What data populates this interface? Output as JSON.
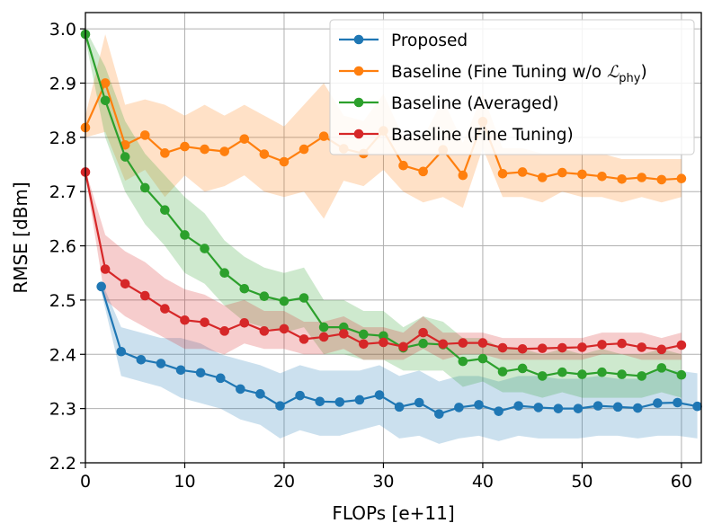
{
  "chart_data": {
    "type": "line",
    "title": "",
    "xlabel": "FLOPs [e+11]",
    "ylabel": "RMSE [dBm]",
    "xlim": [
      0,
      62
    ],
    "ylim": [
      2.2,
      3.03
    ],
    "xticks": [
      0,
      10,
      20,
      30,
      40,
      50,
      60
    ],
    "yticks": [
      2.2,
      2.3,
      2.4,
      2.5,
      2.6,
      2.7,
      2.8,
      2.9,
      3.0
    ],
    "xtick_labels": [
      "0",
      "10",
      "20",
      "30",
      "40",
      "50",
      "60"
    ],
    "ytick_labels": [
      "2.2",
      "2.3",
      "2.4",
      "2.5",
      "2.6",
      "2.7",
      "2.8",
      "2.9",
      "3.0"
    ],
    "grid": true,
    "legend_position": "top-right",
    "series": [
      {
        "name": "Proposed",
        "legend_label": "Proposed",
        "color": "#1f77b4",
        "x": [
          1.6,
          3.6,
          5.6,
          7.6,
          9.6,
          11.6,
          13.6,
          15.6,
          17.6,
          19.6,
          21.6,
          23.6,
          25.6,
          27.6,
          29.6,
          31.6,
          33.6,
          35.6,
          37.6,
          39.6,
          41.6,
          43.6,
          45.6,
          47.6,
          49.6,
          51.6,
          53.6,
          55.6,
          57.6,
          59.6,
          61.6
        ],
        "values": [
          2.525,
          2.405,
          2.39,
          2.383,
          2.371,
          2.366,
          2.356,
          2.336,
          2.327,
          2.305,
          2.324,
          2.313,
          2.312,
          2.316,
          2.325,
          2.303,
          2.311,
          2.29,
          2.302,
          2.307,
          2.295,
          2.305,
          2.302,
          2.3,
          2.3,
          2.305,
          2.303,
          2.301,
          2.31,
          2.311,
          2.304
        ],
        "upper": [
          2.535,
          2.45,
          2.44,
          2.43,
          2.43,
          2.42,
          2.4,
          2.39,
          2.38,
          2.365,
          2.38,
          2.37,
          2.37,
          2.37,
          2.38,
          2.36,
          2.37,
          2.35,
          2.36,
          2.36,
          2.35,
          2.36,
          2.36,
          2.355,
          2.355,
          2.36,
          2.355,
          2.355,
          2.37,
          2.37,
          2.365
        ],
        "lower": [
          2.515,
          2.36,
          2.35,
          2.34,
          2.32,
          2.31,
          2.3,
          2.28,
          2.27,
          2.245,
          2.26,
          2.25,
          2.25,
          2.26,
          2.27,
          2.245,
          2.25,
          2.235,
          2.245,
          2.25,
          2.24,
          2.25,
          2.245,
          2.245,
          2.245,
          2.25,
          2.25,
          2.245,
          2.25,
          2.25,
          2.245
        ]
      },
      {
        "name": "Baseline (Fine Tuning w/o L_phy)",
        "legend_label": "Baseline (Fine Tuning w/o ",
        "legend_math": "ℒ",
        "legend_sub": "phy",
        "legend_close": ")",
        "color": "#ff7f0e",
        "x": [
          0,
          2,
          4,
          6,
          8,
          10,
          12,
          14,
          16,
          18,
          20,
          22,
          24,
          26,
          28,
          30,
          32,
          34,
          36,
          38,
          40,
          42,
          44,
          46,
          48,
          50,
          52,
          54,
          56,
          58,
          60
        ],
        "values": [
          2.818,
          2.9,
          2.786,
          2.804,
          2.771,
          2.783,
          2.778,
          2.774,
          2.797,
          2.769,
          2.755,
          2.778,
          2.802,
          2.779,
          2.77,
          2.812,
          2.748,
          2.737,
          2.777,
          2.73,
          2.829,
          2.733,
          2.736,
          2.726,
          2.735,
          2.732,
          2.728,
          2.723,
          2.726,
          2.722,
          2.724
        ],
        "upper": [
          2.84,
          2.99,
          2.86,
          2.87,
          2.86,
          2.84,
          2.86,
          2.84,
          2.86,
          2.84,
          2.82,
          2.86,
          2.9,
          2.84,
          2.83,
          2.88,
          2.8,
          2.8,
          2.87,
          2.79,
          2.88,
          2.78,
          2.78,
          2.77,
          2.77,
          2.77,
          2.77,
          2.76,
          2.76,
          2.76,
          2.76
        ],
        "lower": [
          2.8,
          2.81,
          2.72,
          2.74,
          2.69,
          2.73,
          2.7,
          2.71,
          2.73,
          2.7,
          2.69,
          2.7,
          2.65,
          2.72,
          2.71,
          2.74,
          2.7,
          2.68,
          2.69,
          2.67,
          2.78,
          2.69,
          2.69,
          2.68,
          2.7,
          2.69,
          2.69,
          2.68,
          2.69,
          2.68,
          2.69
        ]
      },
      {
        "name": "Baseline (Averaged)",
        "legend_label": "Baseline (Averaged)",
        "color": "#2ca02c",
        "x": [
          0,
          2,
          4,
          6,
          8,
          10,
          12,
          14,
          16,
          18,
          20,
          22,
          24,
          26,
          28,
          30,
          32,
          34,
          36,
          38,
          40,
          42,
          44,
          46,
          48,
          50,
          52,
          54,
          56,
          58,
          60
        ],
        "values": [
          2.99,
          2.868,
          2.764,
          2.707,
          2.666,
          2.62,
          2.595,
          2.55,
          2.521,
          2.507,
          2.498,
          2.504,
          2.45,
          2.45,
          2.437,
          2.434,
          2.412,
          2.42,
          2.418,
          2.387,
          2.392,
          2.368,
          2.374,
          2.36,
          2.367,
          2.363,
          2.367,
          2.363,
          2.36,
          2.375,
          2.362
        ],
        "upper": [
          3.0,
          2.93,
          2.83,
          2.77,
          2.73,
          2.69,
          2.66,
          2.61,
          2.58,
          2.56,
          2.55,
          2.56,
          2.5,
          2.5,
          2.48,
          2.48,
          2.45,
          2.47,
          2.46,
          2.43,
          2.43,
          2.41,
          2.41,
          2.4,
          2.41,
          2.4,
          2.41,
          2.4,
          2.4,
          2.41,
          2.4
        ],
        "lower": [
          2.98,
          2.8,
          2.7,
          2.64,
          2.6,
          2.55,
          2.53,
          2.49,
          2.46,
          2.45,
          2.44,
          2.45,
          2.4,
          2.4,
          2.39,
          2.39,
          2.37,
          2.37,
          2.37,
          2.34,
          2.35,
          2.33,
          2.33,
          2.32,
          2.33,
          2.32,
          2.32,
          2.32,
          2.32,
          2.33,
          2.32
        ]
      },
      {
        "name": "Baseline (Fine Tuning)",
        "legend_label": "Baseline (Fine Tuning)",
        "color": "#d62728",
        "x": [
          0,
          2,
          4,
          6,
          8,
          10,
          12,
          14,
          16,
          18,
          20,
          22,
          24,
          26,
          28,
          30,
          32,
          34,
          36,
          38,
          40,
          42,
          44,
          46,
          48,
          50,
          52,
          54,
          56,
          58,
          60
        ],
        "values": [
          2.736,
          2.557,
          2.53,
          2.508,
          2.484,
          2.463,
          2.459,
          2.443,
          2.458,
          2.443,
          2.447,
          2.428,
          2.432,
          2.438,
          2.419,
          2.422,
          2.414,
          2.44,
          2.419,
          2.421,
          2.421,
          2.412,
          2.41,
          2.411,
          2.412,
          2.413,
          2.418,
          2.42,
          2.413,
          2.409,
          2.417
        ],
        "upper": [
          2.74,
          2.62,
          2.59,
          2.57,
          2.54,
          2.52,
          2.51,
          2.49,
          2.5,
          2.48,
          2.48,
          2.46,
          2.46,
          2.47,
          2.45,
          2.45,
          2.44,
          2.47,
          2.44,
          2.44,
          2.44,
          2.43,
          2.43,
          2.43,
          2.43,
          2.43,
          2.44,
          2.44,
          2.44,
          2.43,
          2.44
        ],
        "lower": [
          2.73,
          2.5,
          2.47,
          2.45,
          2.43,
          2.41,
          2.41,
          2.4,
          2.42,
          2.41,
          2.41,
          2.4,
          2.4,
          2.41,
          2.39,
          2.39,
          2.39,
          2.41,
          2.39,
          2.4,
          2.4,
          2.39,
          2.39,
          2.39,
          2.39,
          2.39,
          2.4,
          2.4,
          2.39,
          2.39,
          2.39
        ]
      }
    ]
  }
}
